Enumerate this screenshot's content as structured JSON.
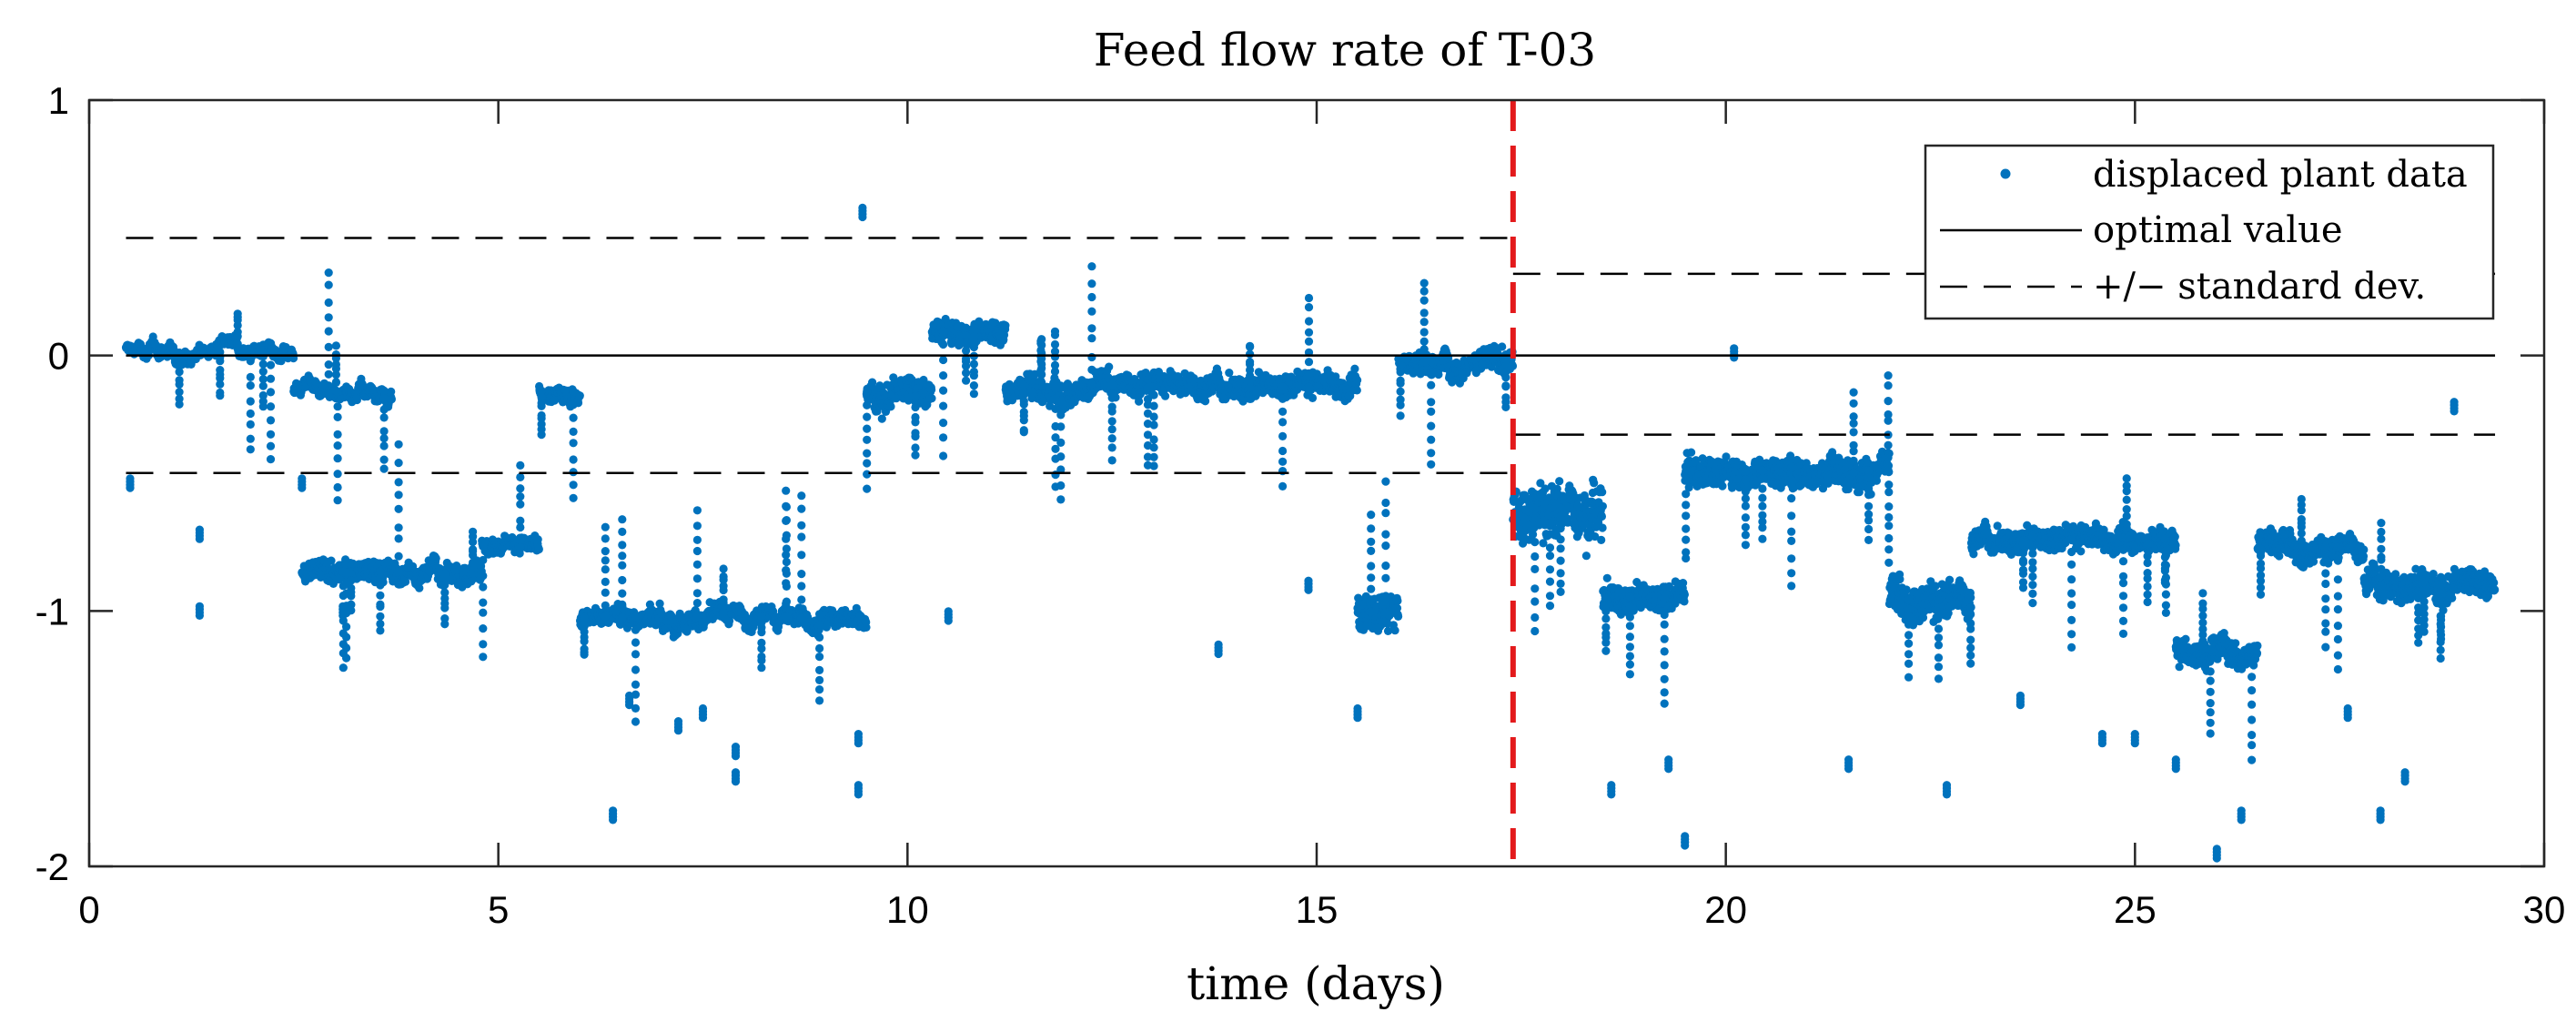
{
  "chart_data": {
    "type": "scatter",
    "title": "Feed flow rate of T-03",
    "xlabel": "time (days)",
    "ylabel": "",
    "xlim": [
      0,
      30
    ],
    "ylim": [
      -2,
      1
    ],
    "x_ticks": [
      0,
      5,
      10,
      15,
      20,
      25,
      30
    ],
    "y_ticks": [
      -2,
      -1,
      0,
      1
    ],
    "grid": false,
    "legend_position": "top-right",
    "colors": {
      "data": "#0072BD",
      "optimal": "#000000",
      "std": "#000000",
      "split": "#E31A1C"
    },
    "split_line": {
      "x": 17.4,
      "color": "#E31A1C",
      "style": "dashed"
    },
    "series": [
      {
        "name": "displaced plant data",
        "kind": "points",
        "segments": [
          {
            "x_start": 0.45,
            "x_end": 2.5,
            "level": 0.02,
            "spread": 0.05
          },
          {
            "x_start": 2.5,
            "x_end": 3.7,
            "level": -0.14,
            "spread": 0.05
          },
          {
            "x_start": 2.6,
            "x_end": 4.8,
            "level": -0.85,
            "spread": 0.1
          },
          {
            "x_start": 4.8,
            "x_end": 5.5,
            "level": -0.75,
            "spread": 0.07
          },
          {
            "x_start": 5.5,
            "x_end": 6.0,
            "level": -0.14,
            "spread": 0.06
          },
          {
            "x_start": 6.0,
            "x_end": 9.5,
            "level": -1.02,
            "spread": 0.08
          },
          {
            "x_start": 9.5,
            "x_end": 10.3,
            "level": -0.15,
            "spread": 0.15
          },
          {
            "x_start": 10.3,
            "x_end": 11.2,
            "level": 0.1,
            "spread": 0.12
          },
          {
            "x_start": 11.2,
            "x_end": 15.5,
            "level": -0.12,
            "spread": 0.12
          },
          {
            "x_start": 15.5,
            "x_end": 16.0,
            "level": -1.0,
            "spread": 0.2
          },
          {
            "x_start": 16.0,
            "x_end": 17.4,
            "level": -0.02,
            "spread": 0.12
          },
          {
            "x_start": 17.4,
            "x_end": 18.5,
            "level": -0.6,
            "spread": 0.3
          },
          {
            "x_start": 18.5,
            "x_end": 19.5,
            "level": -0.95,
            "spread": 0.15
          },
          {
            "x_start": 19.5,
            "x_end": 22.0,
            "level": -0.45,
            "spread": 0.15
          },
          {
            "x_start": 22.0,
            "x_end": 23.0,
            "level": -0.95,
            "spread": 0.2
          },
          {
            "x_start": 23.0,
            "x_end": 25.5,
            "level": -0.72,
            "spread": 0.12
          },
          {
            "x_start": 25.5,
            "x_end": 26.5,
            "level": -1.15,
            "spread": 0.15
          },
          {
            "x_start": 26.5,
            "x_end": 27.8,
            "level": -0.75,
            "spread": 0.12
          },
          {
            "x_start": 27.8,
            "x_end": 29.4,
            "level": -0.9,
            "spread": 0.15
          }
        ],
        "outliers": [
          [
            0.5,
            -0.5
          ],
          [
            1.35,
            -0.7
          ],
          [
            1.35,
            -1.0
          ],
          [
            2.6,
            -0.5
          ],
          [
            3.1,
            -1.0
          ],
          [
            6.4,
            -1.8
          ],
          [
            6.6,
            -1.35
          ],
          [
            7.2,
            -1.45
          ],
          [
            7.5,
            -1.4
          ],
          [
            7.9,
            -1.55
          ],
          [
            7.9,
            -1.65
          ],
          [
            9.4,
            -1.7
          ],
          [
            9.4,
            -1.5
          ],
          [
            9.45,
            0.56
          ],
          [
            10.5,
            -1.02
          ],
          [
            13.8,
            -1.15
          ],
          [
            14.9,
            -0.9
          ],
          [
            15.5,
            -1.4
          ],
          [
            18.6,
            -1.7
          ],
          [
            19.5,
            -1.9
          ],
          [
            19.3,
            -1.6
          ],
          [
            20.1,
            0.01
          ],
          [
            21.5,
            -1.6
          ],
          [
            22.7,
            -1.7
          ],
          [
            23.6,
            -1.35
          ],
          [
            24.6,
            -1.5
          ],
          [
            25.0,
            -1.5
          ],
          [
            25.5,
            -1.6
          ],
          [
            26.0,
            -1.95
          ],
          [
            26.3,
            -1.8
          ],
          [
            27.6,
            -1.4
          ],
          [
            28.0,
            -1.8
          ],
          [
            28.3,
            -1.65
          ],
          [
            28.9,
            -0.2
          ]
        ]
      },
      {
        "name": "optimal value",
        "kind": "line",
        "x": [
          0.45,
          29.4
        ],
        "y": [
          0,
          0
        ]
      },
      {
        "name": "+/− standard dev.",
        "kind": "dashed-line",
        "segments": [
          {
            "x": [
              0.45,
              17.4
            ],
            "y": [
              0.46,
              0.46
            ]
          },
          {
            "x": [
              0.45,
              17.4
            ],
            "y": [
              -0.46,
              -0.46
            ]
          },
          {
            "x": [
              17.4,
              29.4
            ],
            "y": [
              0.32,
              0.32
            ]
          },
          {
            "x": [
              17.4,
              29.4
            ],
            "y": [
              -0.31,
              -0.31
            ]
          }
        ]
      }
    ]
  }
}
